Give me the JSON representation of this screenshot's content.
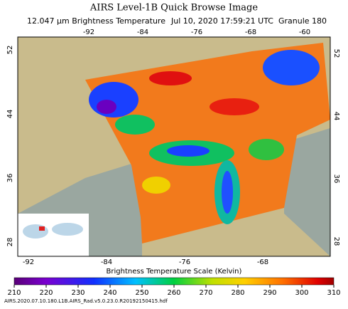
{
  "header": {
    "title": "AIRS Level-1B Quick Browse Image",
    "subtitle": {
      "product": "12.047 μm Brightness Temperature",
      "time": "Jul 10, 2020 17:59:21 UTC",
      "granule": "Granule 180"
    }
  },
  "map": {
    "lon_top": [
      -92,
      -84,
      -76,
      -68,
      -60
    ],
    "lon_bottom": [
      -92,
      -84,
      -76,
      -68
    ],
    "lat_left": [
      52,
      44,
      36,
      28
    ],
    "lat_right": [
      52,
      44,
      36,
      28
    ]
  },
  "colorbar": {
    "title": "Brightness Temperature Scale (Kelvin)",
    "ticks": [
      210,
      220,
      230,
      240,
      250,
      260,
      270,
      280,
      290,
      300,
      310
    ]
  },
  "footer": {
    "file": "AIRS.2020.07.10.180.L1B.AIRS_Rad.v5.0.23.0.R20192150415.hdf"
  }
}
